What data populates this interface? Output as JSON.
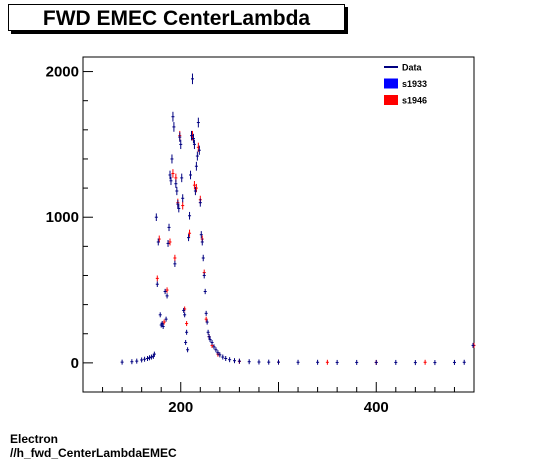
{
  "title": "FWD EMEC CenterLambda",
  "footer": {
    "line1": "Electron",
    "line2": "//h_fwd_CenterLambdaEMEC"
  },
  "chart_data": {
    "type": "scatter",
    "title": "FWD EMEC CenterLambda",
    "xlabel": "",
    "ylabel": "",
    "xlim": [
      100,
      500
    ],
    "ylim": [
      -200,
      2100
    ],
    "x_ticks": [
      200,
      400
    ],
    "y_ticks": [
      0,
      1000,
      2000
    ],
    "x_tick_labels": [
      "200",
      "400"
    ],
    "y_tick_labels": [
      "0",
      "1000",
      "2000"
    ],
    "grid": false,
    "legend_position": "top-right",
    "legend": [
      {
        "label": "Data",
        "color": "#000080",
        "style": "line"
      },
      {
        "label": "s1933",
        "color": "#0000ff",
        "style": "box"
      },
      {
        "label": "s1946",
        "color": "#ff0000",
        "style": "box"
      }
    ],
    "series": [
      {
        "name": "s1946",
        "color": "#ff0000",
        "points": [
          [
            176,
            580
          ],
          [
            178,
            850
          ],
          [
            183,
            280
          ],
          [
            186,
            500
          ],
          [
            189,
            830
          ],
          [
            192,
            1300
          ],
          [
            194,
            720
          ],
          [
            195,
            1270
          ],
          [
            197,
            1100
          ],
          [
            199,
            1560
          ],
          [
            202,
            1080
          ],
          [
            204,
            370
          ],
          [
            206,
            270
          ],
          [
            209,
            890
          ],
          [
            212,
            1560
          ],
          [
            214,
            1220
          ],
          [
            216,
            1200
          ],
          [
            218,
            1480
          ],
          [
            220,
            1120
          ],
          [
            222,
            850
          ],
          [
            224,
            620
          ],
          [
            226,
            300
          ],
          [
            229,
            180
          ],
          [
            232,
            120
          ],
          [
            238,
            60
          ],
          [
            260,
            10
          ],
          [
            300,
            5
          ],
          [
            350,
            4
          ],
          [
            400,
            3
          ],
          [
            450,
            4
          ],
          [
            500,
            120
          ]
        ]
      },
      {
        "name": "Data",
        "color": "#000080",
        "points": [
          [
            140,
            5
          ],
          [
            150,
            8
          ],
          [
            155,
            12
          ],
          [
            160,
            20
          ],
          [
            163,
            25
          ],
          [
            166,
            30
          ],
          [
            168,
            35
          ],
          [
            170,
            40
          ],
          [
            172,
            45
          ],
          [
            173,
            60
          ],
          [
            175,
            1000
          ],
          [
            176,
            540
          ],
          [
            177,
            830
          ],
          [
            179,
            330
          ],
          [
            180,
            260
          ],
          [
            181,
            270
          ],
          [
            182,
            250
          ],
          [
            184,
            490
          ],
          [
            185,
            300
          ],
          [
            186,
            460
          ],
          [
            187,
            820
          ],
          [
            188,
            930
          ],
          [
            189,
            1290
          ],
          [
            190,
            1250
          ],
          [
            191,
            1400
          ],
          [
            192,
            1690
          ],
          [
            193,
            1620
          ],
          [
            194,
            680
          ],
          [
            195,
            1230
          ],
          [
            196,
            1180
          ],
          [
            197,
            1090
          ],
          [
            198,
            1060
          ],
          [
            199,
            1550
          ],
          [
            200,
            1500
          ],
          [
            201,
            1270
          ],
          [
            202,
            1130
          ],
          [
            203,
            360
          ],
          [
            204,
            330
          ],
          [
            205,
            140
          ],
          [
            206,
            210
          ],
          [
            207,
            90
          ],
          [
            208,
            860
          ],
          [
            209,
            1010
          ],
          [
            210,
            1290
          ],
          [
            211,
            1560
          ],
          [
            212,
            1950
          ],
          [
            213,
            1540
          ],
          [
            214,
            1500
          ],
          [
            215,
            1180
          ],
          [
            216,
            1350
          ],
          [
            217,
            1420
          ],
          [
            218,
            1650
          ],
          [
            219,
            1460
          ],
          [
            220,
            1100
          ],
          [
            221,
            880
          ],
          [
            222,
            830
          ],
          [
            223,
            720
          ],
          [
            224,
            600
          ],
          [
            225,
            490
          ],
          [
            226,
            340
          ],
          [
            227,
            280
          ],
          [
            228,
            210
          ],
          [
            229,
            180
          ],
          [
            230,
            160
          ],
          [
            232,
            140
          ],
          [
            234,
            110
          ],
          [
            236,
            90
          ],
          [
            238,
            70
          ],
          [
            240,
            55
          ],
          [
            243,
            40
          ],
          [
            246,
            30
          ],
          [
            250,
            22
          ],
          [
            255,
            15
          ],
          [
            260,
            12
          ],
          [
            270,
            8
          ],
          [
            280,
            6
          ],
          [
            290,
            5
          ],
          [
            300,
            5
          ],
          [
            320,
            4
          ],
          [
            340,
            4
          ],
          [
            360,
            3
          ],
          [
            380,
            3
          ],
          [
            400,
            3
          ],
          [
            420,
            3
          ],
          [
            440,
            2
          ],
          [
            460,
            2
          ],
          [
            480,
            3
          ],
          [
            490,
            4
          ],
          [
            499,
            120
          ]
        ]
      }
    ]
  }
}
